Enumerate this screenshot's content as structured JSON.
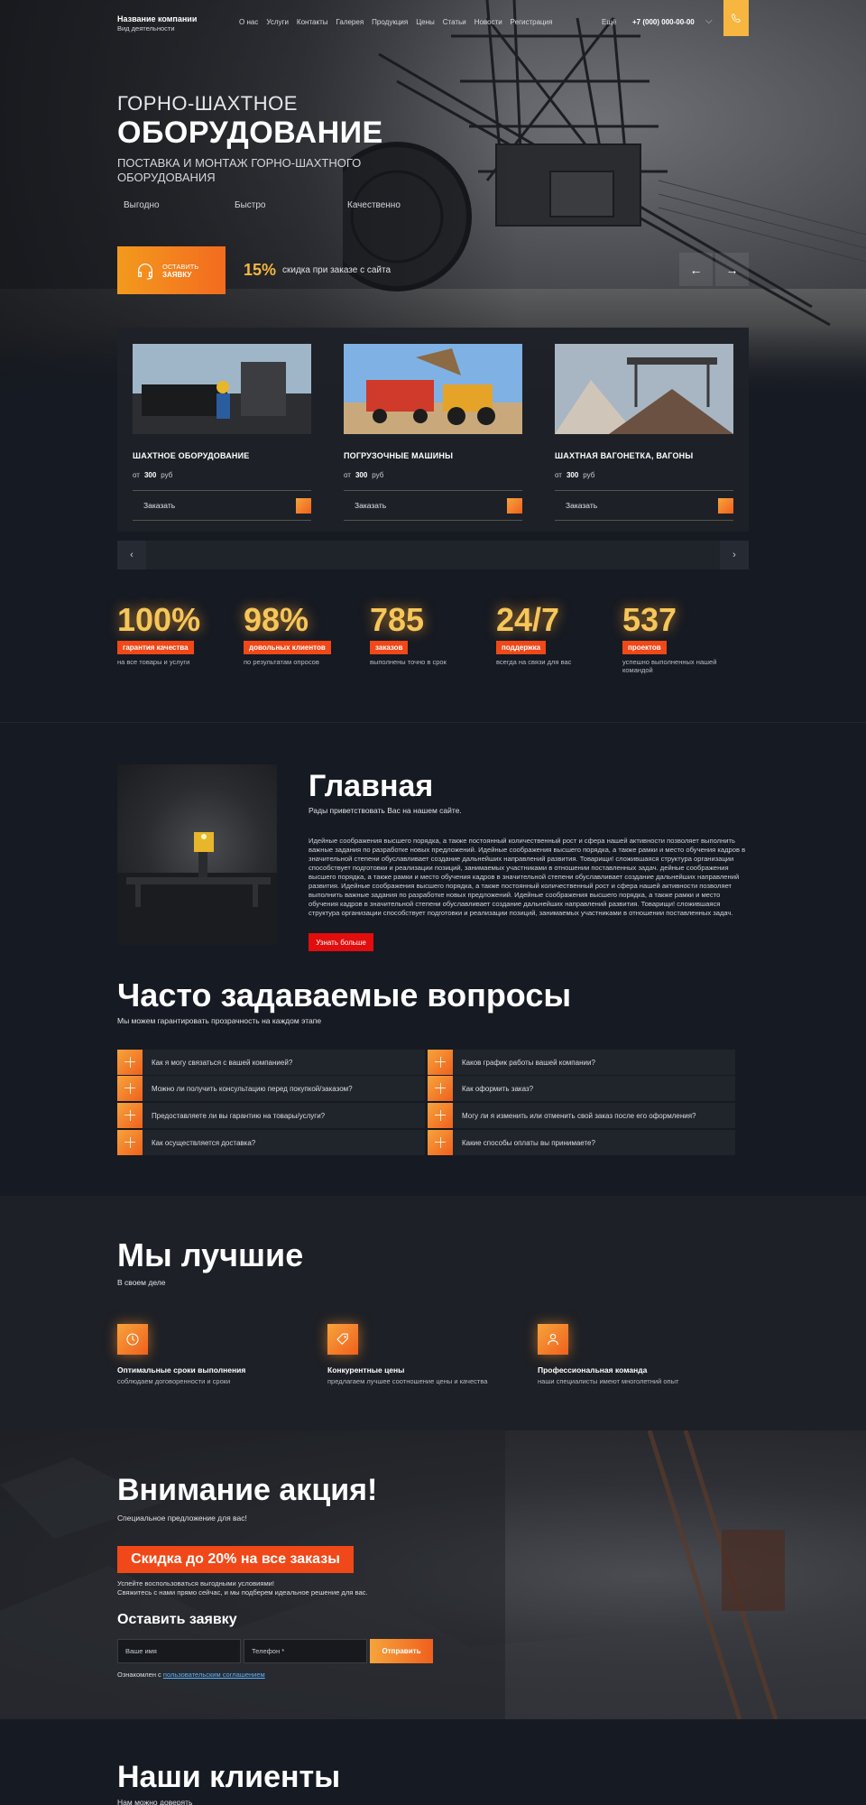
{
  "header": {
    "brand_name": "Название компании",
    "brand_sub": "Вид деятельности",
    "nav": [
      "О нас",
      "Услуги",
      "Контакты",
      "Галерея",
      "Продукция",
      "Цены",
      "Статьи",
      "Новости",
      "Регистрация"
    ],
    "more": "Ещё",
    "phone": "+7 (000) 000-00-00"
  },
  "hero": {
    "title_small": "ГОРНО-ШАХТНОЕ",
    "title_big": "ОБОРУДОВАНИЕ",
    "subtitle": "ПОСТАВКА И МОНТАЖ ГОРНО-ШАХТНОГО ОБОРУДОВАНИЯ",
    "advantages": [
      "Выгодно",
      "Быстро",
      "Качественно"
    ],
    "order_line1": "ОСТАВИТЬ",
    "order_line2": "ЗАЯВКУ",
    "discount_value": "15%",
    "discount_text": "скидка при заказе с сайта"
  },
  "products": [
    {
      "title": "ШАХТНОЕ ОБОРУДОВАНИЕ",
      "price_prefix": "от",
      "price": "300",
      "currency": "руб",
      "buy": "Заказать"
    },
    {
      "title": "ПОГРУЗОЧНЫЕ МАШИНЫ",
      "price_prefix": "от",
      "price": "300",
      "currency": "руб",
      "buy": "Заказать"
    },
    {
      "title": "ШАХТНАЯ ВАГОНЕТКА, ВАГОНЫ",
      "price_prefix": "от",
      "price": "300",
      "currency": "руб",
      "buy": "Заказать"
    }
  ],
  "stats": [
    {
      "num": "100%",
      "label": "гарантия качества",
      "desc": "на все товары и услуги"
    },
    {
      "num": "98%",
      "label": "довольных клиентов",
      "desc": "по результатам опросов"
    },
    {
      "num": "785",
      "label": "заказов",
      "desc": "выполнены точно в срок"
    },
    {
      "num": "24/7",
      "label": "поддержка",
      "desc": "всегда на связи для вас"
    },
    {
      "num": "537",
      "label": "проектов",
      "desc": "успешно выполненных нашей командой"
    }
  ],
  "about": {
    "title": "Главная",
    "subtitle": "Рады приветствовать Вас на нашем сайте.",
    "text": "Идейные соображения высшего порядка, а также постоянный количественный рост и сфера нашей активности позволяет выполнить важные задания по разработке новых предложений. Идейные соображения высшего порядка, а также рамки и место обучения кадров в значительной степени обуславливает создание дальнейших направлений развития. Товарищи! сложившаяся структура организации способствует подготовки и реализации позиций, занимаемых участниками в отношении поставленных задач. дейные соображения высшего порядка, а также рамки и место обучения кадров в значительной степени обуславливает создание дальнейших направлений развития. Идейные соображения высшего порядка, а также постоянный количественный рост и сфера нашей активности позволяет выполнить важные задания по разработке новых предложений. Идейные соображения высшего порядка, а также рамки и место обучения кадров в значительной степени обуславливает создание дальнейших направлений развития. Товарищи! сложившаяся структура организации способствует подготовки и реализации позиций, занимаемых участниками в отношении поставленных задач.",
    "button": "Узнать больше"
  },
  "faq": {
    "title": "Часто задаваемые вопросы",
    "subtitle": "Мы можем гарантировать прозрачность на каждом этапе",
    "left": [
      "Как я могу связаться с вашей компанией?",
      "Можно ли получить консультацию перед покупкой/заказом?",
      "Предоставляете ли вы гарантию на товары/услуги?",
      "Как осуществляется доставка?"
    ],
    "right": [
      "Каков график работы вашей компании?",
      "Как оформить заказ?",
      "Могу ли я изменить или отменить свой заказ после его оформления?",
      "Какие способы оплаты вы принимаете?"
    ]
  },
  "best": {
    "title": "Мы лучшие",
    "subtitle": "В своем деле",
    "features": [
      {
        "title": "Оптимальные сроки выполнения",
        "desc": "соблюдаем договоренности и сроки",
        "icon": "clock-icon"
      },
      {
        "title": "Конкурентные цены",
        "desc": "предлагаем лучшее соотношение цены и качества",
        "icon": "price-tag-icon"
      },
      {
        "title": "Профессиональная команда",
        "desc": "наши специалисты имеют многолетний опыт",
        "icon": "team-icon"
      }
    ]
  },
  "promo": {
    "title": "Внимание акция!",
    "subtitle": "Специальное предложение для вас!",
    "badge": "Скидка до 20% на все заказы",
    "text_1": "Успейте воспользоваться выгодными условиями!",
    "text_2": "Свяжитесь с нами прямо сейчас, и мы подберем идеальное решение для вас.",
    "form_title": "Оставить заявку",
    "name_placeholder": "Ваше имя",
    "phone_placeholder": "Телефон *",
    "send": "Отправить",
    "agree_prefix": "Ознакомлен с",
    "agree_link": "пользовательским соглашением"
  },
  "clients": {
    "title": "Наши клиенты",
    "subtitle": "Нам можно доверять"
  },
  "colors": {
    "accent_orange": "#f36b1f",
    "accent_yellow": "#f6b640",
    "label_red": "#f04818",
    "button_red": "#e20d0d",
    "background": "#161a22"
  }
}
